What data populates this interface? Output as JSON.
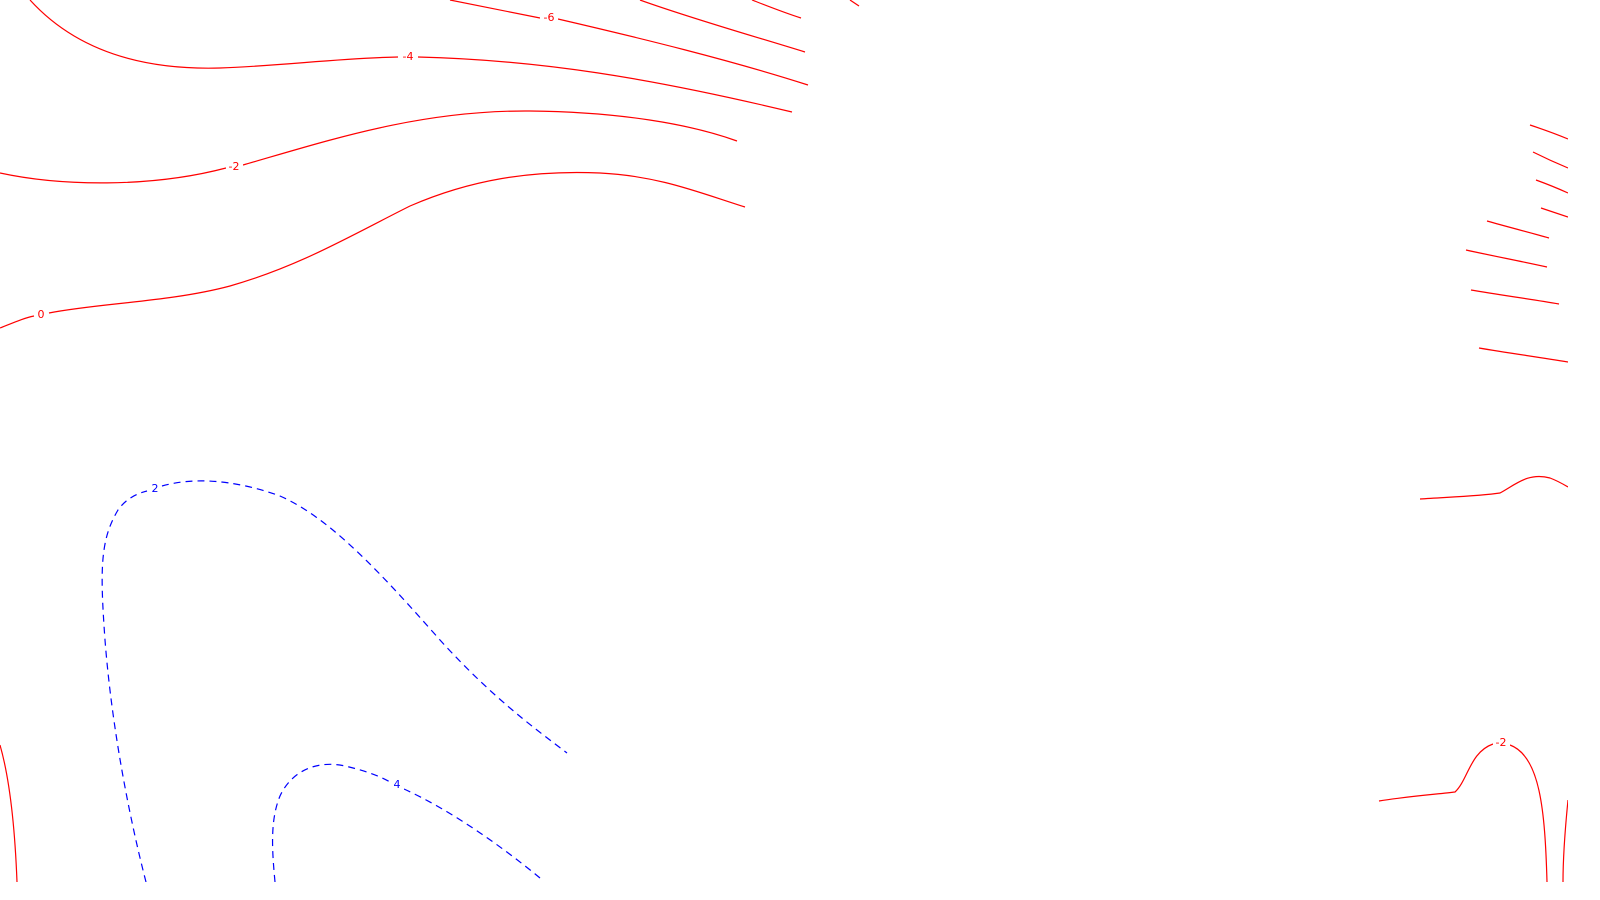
{
  "map": {
    "background": "#ffffff",
    "negative_contour_color": "#ff0000",
    "positive_contour_color": "#0000ff",
    "negative_line_style": "solid",
    "positive_line_style": "dashed",
    "contour_labels": {
      "minus6_top": "-6",
      "minus4_top": "-4",
      "minus2_top": "-2",
      "zero_left": "0",
      "plus2_left": "2",
      "plus4_bottom": "4",
      "minus2_bottom_right": "-2"
    }
  }
}
